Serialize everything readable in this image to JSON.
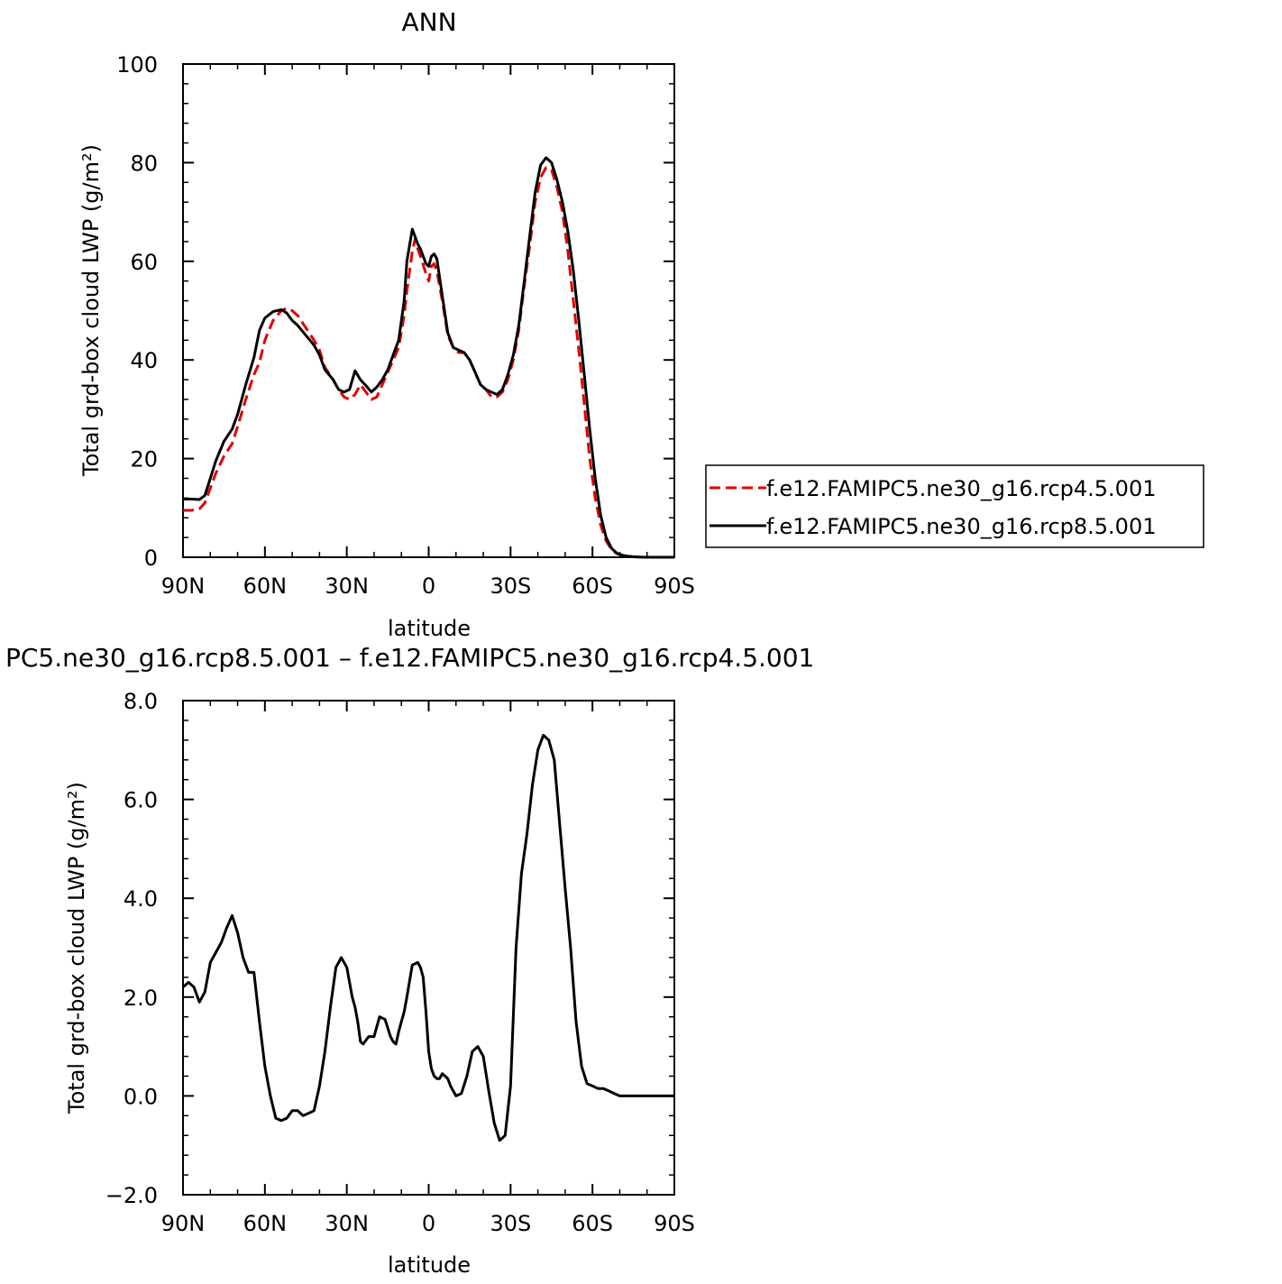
{
  "chart_data": [
    {
      "type": "line",
      "title": "ANN",
      "xlabel": "latitude",
      "ylabel": "Total grd-box cloud LWP (g/m²)",
      "xlim": [
        90,
        -90
      ],
      "ylim": [
        0,
        100
      ],
      "x_ticks": [
        90,
        60,
        30,
        0,
        -30,
        -60,
        -90
      ],
      "x_tick_labels": [
        "90N",
        "60N",
        "30N",
        "0",
        "30S",
        "60S",
        "90S"
      ],
      "y_ticks": [
        0,
        20,
        40,
        60,
        80,
        100
      ],
      "y_tick_labels": [
        "0",
        "20",
        "40",
        "60",
        "80",
        "100"
      ],
      "legend_position": "right",
      "series": [
        {
          "name": "f.e12.FAMIPC5.ne30_g16.rcp4.5.001",
          "color": "#e00000",
          "dash": "dashed",
          "x": [
            90,
            87,
            84,
            82,
            80,
            78,
            75,
            72,
            70,
            67,
            64,
            62,
            60,
            57,
            54,
            52,
            50,
            48,
            45,
            42,
            40,
            38,
            35,
            33,
            31,
            29,
            27,
            25,
            23,
            21,
            19,
            17,
            15,
            13,
            11,
            9,
            8,
            6,
            5,
            4,
            3,
            1,
            0,
            -1,
            -2,
            -3,
            -5,
            -7,
            -9,
            -11,
            -13,
            -15,
            -17,
            -19,
            -21,
            -23,
            -25,
            -27,
            -29,
            -31,
            -33,
            -35,
            -37,
            -39,
            -41,
            -43,
            -45,
            -47,
            -49,
            -51,
            -53,
            -55,
            -57,
            -59,
            -61,
            -63,
            -65,
            -67,
            -69,
            -71,
            -73,
            -75,
            -77,
            -79,
            -81,
            -83,
            -85,
            -87,
            -90
          ],
          "y": [
            9.5,
            9.5,
            9.8,
            11,
            14,
            17,
            20.5,
            23,
            26.5,
            32,
            37,
            39.5,
            44,
            48,
            50,
            50.5,
            50,
            49,
            46.5,
            44,
            42,
            38.5,
            36,
            34,
            32.5,
            32,
            33,
            35,
            33.5,
            32,
            32.5,
            35,
            37.5,
            40,
            42.5,
            49,
            54,
            62,
            64.5,
            62.5,
            61,
            57.5,
            56,
            59,
            59.5,
            58,
            52,
            45,
            42.5,
            41.5,
            41.5,
            40,
            37.5,
            35,
            34,
            32.5,
            32.5,
            33.5,
            36,
            40,
            46,
            55,
            63,
            72,
            77,
            79,
            78.5,
            75,
            70,
            62,
            52,
            42,
            31,
            20,
            12,
            6.5,
            3.3,
            1.5,
            0.7,
            0.4,
            0.2,
            0.1,
            0.05,
            0,
            0,
            0,
            0,
            0,
            0
          ]
        },
        {
          "name": "f.e12.FAMIPC5.ne30_g16.rcp8.5.001",
          "color": "#000000",
          "dash": "solid",
          "x": [
            90,
            87,
            84,
            82,
            80,
            78,
            75,
            72,
            70,
            67,
            64,
            62,
            60,
            57,
            54,
            52,
            50,
            48,
            45,
            42,
            40,
            38,
            35,
            33,
            31,
            29,
            27,
            25,
            23,
            21,
            19,
            17,
            15,
            13,
            11,
            9,
            8,
            6,
            5,
            4,
            3,
            1,
            0,
            -1,
            -2,
            -3,
            -5,
            -7,
            -9,
            -11,
            -13,
            -15,
            -17,
            -19,
            -21,
            -23,
            -25,
            -27,
            -29,
            -31,
            -33,
            -35,
            -37,
            -39,
            -41,
            -43,
            -45,
            -47,
            -49,
            -51,
            -53,
            -55,
            -57,
            -59,
            -61,
            -63,
            -65,
            -67,
            -69,
            -71,
            -73,
            -75,
            -77,
            -79,
            -81,
            -83,
            -85,
            -87,
            -90
          ],
          "y": [
            11.8,
            11.8,
            11.7,
            12.5,
            16,
            19.5,
            23.5,
            26,
            29,
            35,
            40.5,
            46,
            48.5,
            49.8,
            50.2,
            49.5,
            48,
            47,
            45,
            43,
            41,
            38,
            36,
            34,
            33.5,
            34,
            37.8,
            36,
            34.8,
            33.5,
            34.5,
            36,
            38,
            41,
            44,
            52,
            60,
            66.5,
            65,
            63.5,
            62.5,
            59.5,
            59,
            61,
            61.5,
            60.5,
            53,
            45.5,
            42.5,
            42,
            41.5,
            40,
            37.5,
            35,
            34,
            33.5,
            33,
            34,
            37,
            41,
            47,
            56,
            65,
            74,
            79.5,
            81,
            80,
            76.5,
            72,
            66,
            58,
            48,
            37,
            26,
            16,
            8.5,
            4,
            1.8,
            0.8,
            0.4,
            0.2,
            0.1,
            0.05,
            0,
            0,
            0,
            0,
            0,
            0
          ]
        }
      ]
    },
    {
      "type": "line",
      "title": "PC5.ne30_g16.rcp8.5.001 – f.e12.FAMIPC5.ne30_g16.rcp4.5.001",
      "xlabel": "latitude",
      "ylabel": "Total grd-box cloud LWP (g/m²)",
      "xlim": [
        90,
        -90
      ],
      "ylim": [
        -2.0,
        8.0
      ],
      "x_ticks": [
        90,
        60,
        30,
        0,
        -30,
        -60,
        -90
      ],
      "x_tick_labels": [
        "90N",
        "60N",
        "30N",
        "0",
        "30S",
        "60S",
        "90S"
      ],
      "y_ticks": [
        -2,
        0,
        2,
        4,
        6,
        8
      ],
      "y_tick_labels": [
        "−2.0",
        "0.0",
        "2.0",
        "4.0",
        "6.0",
        "8.0"
      ],
      "series": [
        {
          "color": "#000000",
          "dash": "solid",
          "x": [
            90,
            88,
            86,
            84,
            82,
            80,
            78,
            76,
            74,
            72,
            70,
            68,
            66,
            64,
            62,
            60,
            58,
            56,
            54,
            52,
            50,
            48,
            46,
            44,
            42,
            40,
            38,
            36,
            34,
            32,
            30,
            28,
            27,
            26,
            25,
            24,
            22,
            20,
            18,
            16,
            14,
            13,
            12,
            11,
            10,
            9,
            8,
            6,
            4,
            3,
            2,
            1,
            0,
            -1,
            -2,
            -3,
            -4,
            -5,
            -6,
            -7,
            -8,
            -10,
            -12,
            -14,
            -16,
            -18,
            -20,
            -22,
            -24,
            -26,
            -28,
            -30,
            -32,
            -34,
            -36,
            -38,
            -40,
            -42,
            -44,
            -46,
            -48,
            -50,
            -52,
            -54,
            -56,
            -58,
            -60,
            -62,
            -64,
            -66,
            -68,
            -70,
            -72,
            -74,
            -76,
            -78,
            -80,
            -82,
            -84,
            -86,
            -88,
            -90
          ],
          "y": [
            2.2,
            2.3,
            2.2,
            1.9,
            2.1,
            2.7,
            2.9,
            3.1,
            3.4,
            3.65,
            3.3,
            2.8,
            2.5,
            2.5,
            1.5,
            0.6,
            0.0,
            -0.45,
            -0.5,
            -0.45,
            -0.3,
            -0.3,
            -0.4,
            -0.35,
            -0.3,
            0.2,
            0.9,
            1.8,
            2.6,
            2.8,
            2.6,
            2.0,
            1.8,
            1.5,
            1.1,
            1.05,
            1.2,
            1.2,
            1.6,
            1.55,
            1.2,
            1.1,
            1.05,
            1.3,
            1.5,
            1.7,
            2.0,
            2.65,
            2.7,
            2.6,
            2.4,
            1.7,
            0.9,
            0.55,
            0.4,
            0.35,
            0.35,
            0.45,
            0.4,
            0.35,
            0.2,
            0.0,
            0.05,
            0.4,
            0.9,
            1.0,
            0.8,
            0.1,
            -0.55,
            -0.9,
            -0.8,
            0.2,
            3.0,
            4.5,
            5.3,
            6.3,
            7.0,
            7.3,
            7.2,
            6.8,
            5.5,
            4.2,
            3.0,
            1.5,
            0.6,
            0.25,
            0.2,
            0.15,
            0.15,
            0.1,
            0.05,
            0.0,
            0.0,
            0.0,
            0.0,
            0.0,
            0.0,
            0.0,
            0.0,
            0.0,
            0.0,
            0.0
          ]
        }
      ]
    }
  ]
}
